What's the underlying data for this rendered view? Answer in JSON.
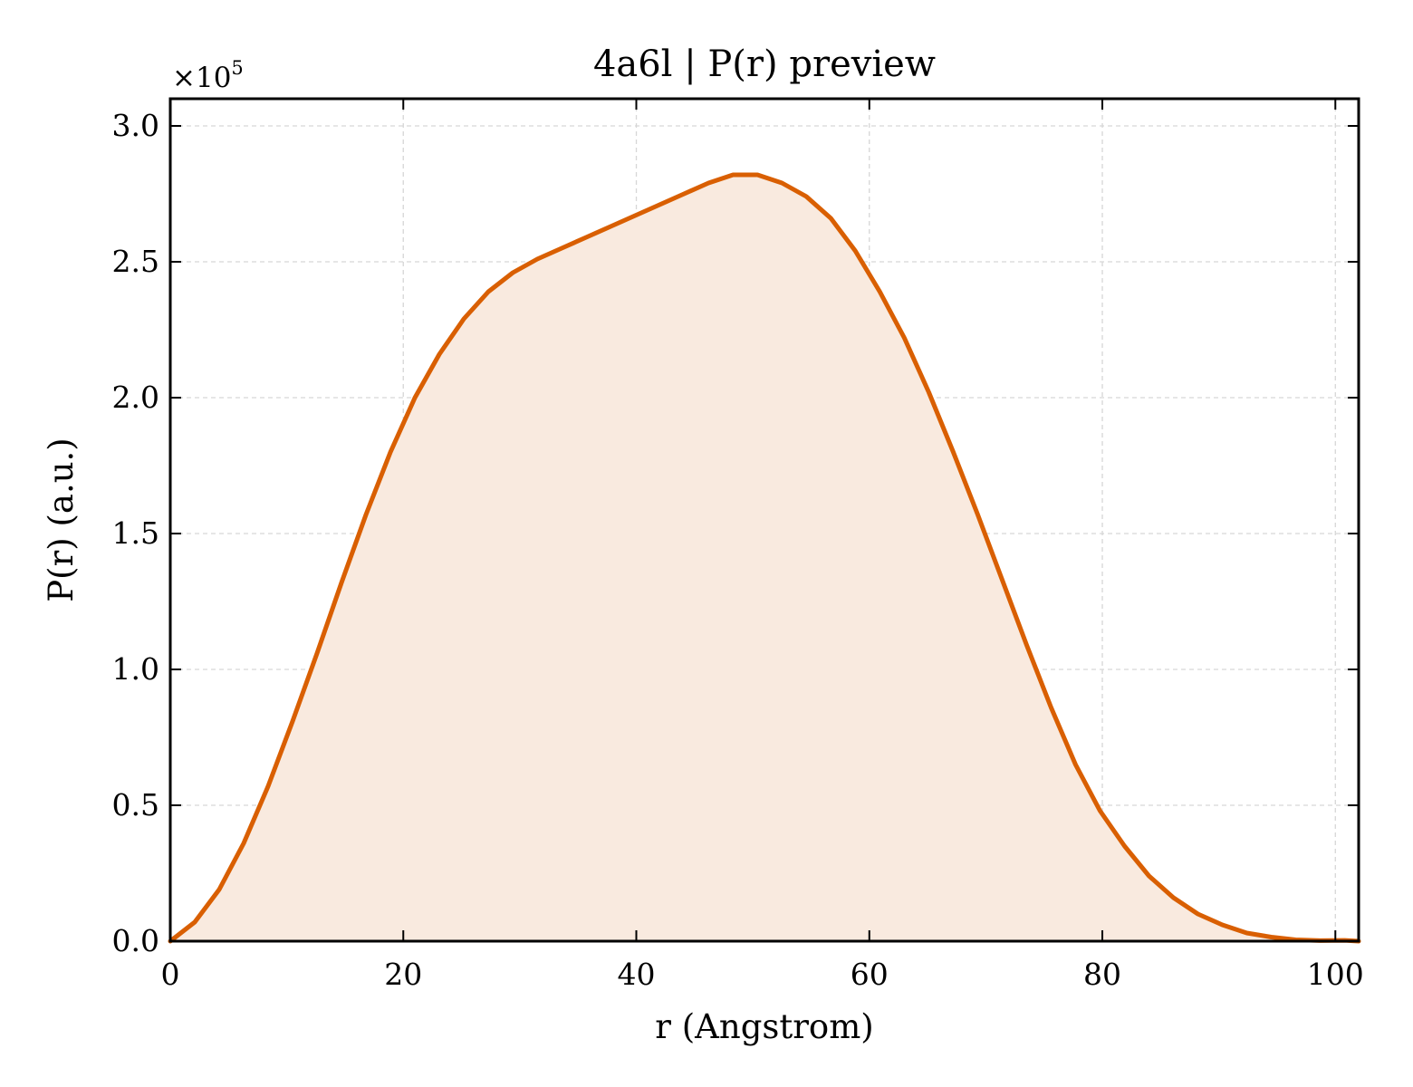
{
  "chart_data": {
    "type": "area",
    "title": "4a6l | P(r) preview",
    "xlabel": "r (Angstrom)",
    "ylabel": "P(r) (a.u.)",
    "y_offset_label": "×10",
    "y_offset_exponent": "5",
    "xlim": [
      0,
      102
    ],
    "ylim": [
      0,
      3.1
    ],
    "x_ticks": [
      0,
      20,
      40,
      60,
      80,
      100
    ],
    "x_tick_labels": [
      "0",
      "20",
      "40",
      "60",
      "80",
      "100"
    ],
    "y_ticks": [
      0,
      0.5,
      1.0,
      1.5,
      2.0,
      2.5,
      3.0
    ],
    "y_tick_labels": [
      "0.0",
      "0.5",
      "1.0",
      "1.5",
      "2.0",
      "2.5",
      "3.0"
    ],
    "grid": true,
    "line_color": "#d95f02",
    "fill_color": "#f9eadf",
    "series": [
      {
        "x": [
          0,
          2.1,
          4.2,
          6.3,
          8.4,
          10.5,
          12.6,
          14.7,
          16.8,
          18.9,
          21.0,
          23.1,
          25.2,
          27.3,
          29.4,
          31.5,
          33.6,
          35.7,
          37.8,
          39.9,
          42.0,
          44.1,
          46.2,
          48.3,
          50.4,
          52.5,
          54.6,
          56.7,
          58.8,
          60.9,
          63.0,
          65.1,
          67.2,
          69.3,
          71.4,
          73.5,
          75.6,
          77.7,
          79.8,
          81.9,
          84.0,
          86.1,
          88.2,
          90.3,
          92.4,
          94.5,
          96.6,
          98.7,
          100.8,
          102.0
        ],
        "y": [
          0.0,
          0.07,
          0.19,
          0.36,
          0.57,
          0.81,
          1.06,
          1.32,
          1.57,
          1.8,
          2.0,
          2.16,
          2.29,
          2.39,
          2.46,
          2.51,
          2.55,
          2.59,
          2.63,
          2.67,
          2.71,
          2.75,
          2.79,
          2.82,
          2.82,
          2.79,
          2.74,
          2.66,
          2.54,
          2.39,
          2.22,
          2.02,
          1.8,
          1.57,
          1.33,
          1.09,
          0.86,
          0.65,
          0.48,
          0.35,
          0.24,
          0.16,
          0.1,
          0.06,
          0.03,
          0.015,
          0.005,
          0.002,
          0.003,
          0.0
        ]
      }
    ]
  }
}
